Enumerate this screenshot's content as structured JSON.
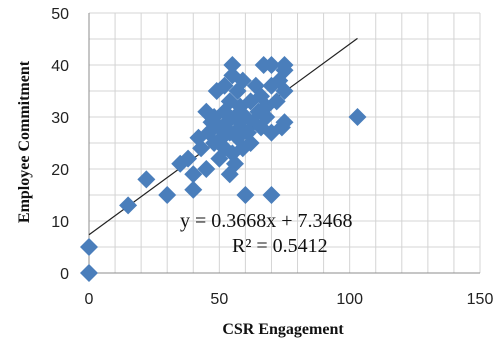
{
  "chart_data": {
    "type": "scatter",
    "title": "",
    "xlabel": "CSR Engagement",
    "ylabel": "Employee Commitment",
    "xlim": [
      0,
      150
    ],
    "ylim": [
      0,
      50
    ],
    "x_ticks": [
      0,
      50,
      100,
      150
    ],
    "y_ticks": [
      0,
      10,
      20,
      30,
      40,
      50
    ],
    "x_tick_labels": [
      "0",
      "50",
      "100",
      "150"
    ],
    "y_tick_labels": [
      "0",
      "10",
      "20",
      "30",
      "40",
      "50"
    ],
    "grid": "horizontal and vertical, light gray",
    "legend": "none",
    "marker": "diamond",
    "marker_color": "#4a7ebb",
    "trendline": {
      "type": "linear",
      "slope": 0.3668,
      "intercept": 7.3468,
      "x_range": [
        0,
        103
      ],
      "color": "#222222"
    },
    "annotations": {
      "equation": "y = 0.3668x + 7.3468",
      "r_squared": "R² = 0.5412"
    },
    "points": [
      {
        "x": 0,
        "y": 0
      },
      {
        "x": 0,
        "y": 5
      },
      {
        "x": 15,
        "y": 13
      },
      {
        "x": 22,
        "y": 18
      },
      {
        "x": 30,
        "y": 15
      },
      {
        "x": 35,
        "y": 21
      },
      {
        "x": 38,
        "y": 22
      },
      {
        "x": 40,
        "y": 16
      },
      {
        "x": 40,
        "y": 19
      },
      {
        "x": 42,
        "y": 26
      },
      {
        "x": 43,
        "y": 24
      },
      {
        "x": 45,
        "y": 20
      },
      {
        "x": 45,
        "y": 31
      },
      {
        "x": 46,
        "y": 27
      },
      {
        "x": 47,
        "y": 29
      },
      {
        "x": 48,
        "y": 25
      },
      {
        "x": 48,
        "y": 30
      },
      {
        "x": 49,
        "y": 35
      },
      {
        "x": 50,
        "y": 22
      },
      {
        "x": 50,
        "y": 28
      },
      {
        "x": 51,
        "y": 26
      },
      {
        "x": 52,
        "y": 24
      },
      {
        "x": 52,
        "y": 31
      },
      {
        "x": 52,
        "y": 36
      },
      {
        "x": 53,
        "y": 29
      },
      {
        "x": 54,
        "y": 19
      },
      {
        "x": 54,
        "y": 27
      },
      {
        "x": 54,
        "y": 33
      },
      {
        "x": 55,
        "y": 23
      },
      {
        "x": 55,
        "y": 38
      },
      {
        "x": 55,
        "y": 40
      },
      {
        "x": 56,
        "y": 21
      },
      {
        "x": 56,
        "y": 30
      },
      {
        "x": 57,
        "y": 26
      },
      {
        "x": 57,
        "y": 35
      },
      {
        "x": 58,
        "y": 28
      },
      {
        "x": 58,
        "y": 32
      },
      {
        "x": 59,
        "y": 24
      },
      {
        "x": 59,
        "y": 37
      },
      {
        "x": 60,
        "y": 15
      },
      {
        "x": 60,
        "y": 30
      },
      {
        "x": 61,
        "y": 27
      },
      {
        "x": 62,
        "y": 33
      },
      {
        "x": 62,
        "y": 25
      },
      {
        "x": 63,
        "y": 29
      },
      {
        "x": 64,
        "y": 36
      },
      {
        "x": 65,
        "y": 31
      },
      {
        "x": 66,
        "y": 28
      },
      {
        "x": 66,
        "y": 34
      },
      {
        "x": 67,
        "y": 40
      },
      {
        "x": 68,
        "y": 30
      },
      {
        "x": 68,
        "y": 32
      },
      {
        "x": 70,
        "y": 15
      },
      {
        "x": 70,
        "y": 27
      },
      {
        "x": 70,
        "y": 36
      },
      {
        "x": 70,
        "y": 40
      },
      {
        "x": 72,
        "y": 33
      },
      {
        "x": 73,
        "y": 37
      },
      {
        "x": 74,
        "y": 28
      },
      {
        "x": 75,
        "y": 29
      },
      {
        "x": 75,
        "y": 35
      },
      {
        "x": 75,
        "y": 39
      },
      {
        "x": 75,
        "y": 40
      },
      {
        "x": 103,
        "y": 30
      }
    ]
  }
}
